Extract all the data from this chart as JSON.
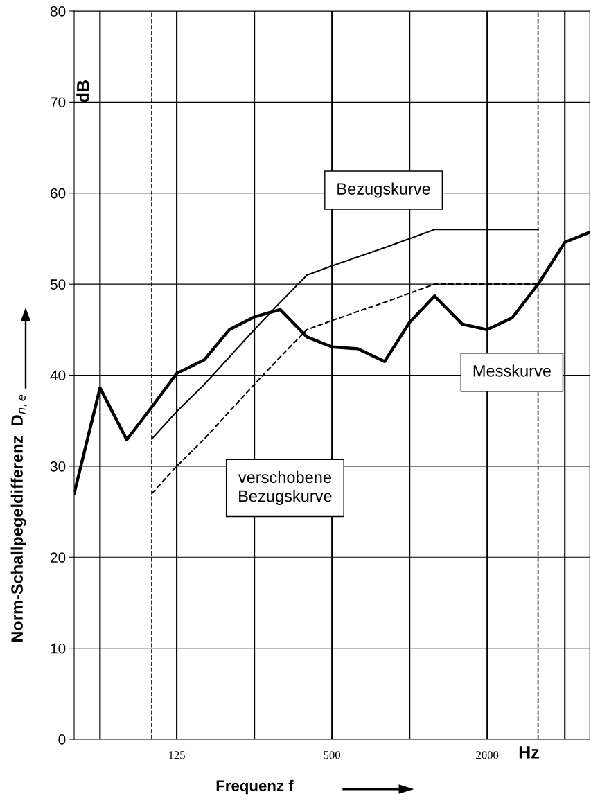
{
  "chart_data": {
    "type": "line",
    "x": [
      50,
      63,
      80,
      100,
      125,
      160,
      200,
      250,
      315,
      400,
      500,
      630,
      800,
      1000,
      1250,
      1600,
      2000,
      2500,
      3150,
      4000,
      5000
    ],
    "series": [
      {
        "name": "Messkurve",
        "color": "#000000",
        "line_style": "solid",
        "values": [
          27,
          38.6,
          32.9,
          36.5,
          40.2,
          41.7,
          45,
          46.4,
          47.2,
          44.2,
          43.1,
          42.9,
          41.5,
          45.8,
          48.7,
          45.6,
          45,
          46.3,
          50,
          54.6,
          55.7
        ]
      },
      {
        "name": "Bezugskurve",
        "color": "#000000",
        "line_style": "solid",
        "x": [
          100,
          125,
          160,
          200,
          250,
          315,
          400,
          500,
          630,
          800,
          1000,
          1250,
          1600,
          2000,
          2500,
          3150
        ],
        "values": [
          33,
          36,
          39,
          42,
          45,
          48,
          51,
          52,
          53,
          54,
          55,
          56,
          56,
          56,
          56,
          56
        ]
      },
      {
        "name": "verschobene\nBezugskurve",
        "color": "#000000",
        "line_style": "dashed",
        "x": [
          100,
          125,
          160,
          200,
          250,
          315,
          400,
          500,
          630,
          800,
          1000,
          1250,
          1600,
          2000,
          2500,
          3150
        ],
        "values": [
          27,
          30,
          33,
          36,
          39,
          42,
          45,
          46,
          47,
          48,
          49,
          50,
          50,
          50,
          50,
          50
        ]
      }
    ],
    "xlabel": "Frequenz f",
    "ylabel": "Norm-Schallpegeldifferenz  D$_{n,e}$",
    "annotations": [
      "dB",
      "Hz"
    ],
    "log": "x",
    "xlim": [
      50,
      5000
    ],
    "xticks": [
      {
        "value": 63,
        "label": null
      },
      {
        "value": 125,
        "label": "125"
      },
      {
        "value": 250,
        "label": null
      },
      {
        "value": 500,
        "label": "500"
      },
      {
        "value": 1000,
        "label": null
      },
      {
        "value": 2000,
        "label": "2000"
      },
      {
        "value": 4000,
        "label": null
      }
    ],
    "ylim": [
      0,
      80
    ],
    "yticks": [
      0,
      10,
      20,
      30,
      40,
      50,
      60,
      70,
      80
    ],
    "ref_lines": [
      {
        "axis": "x",
        "value": 100,
        "line_style": "dashed",
        "color": "#000000"
      },
      {
        "axis": "x",
        "value": 3150,
        "line_style": "dashed",
        "color": "#000000"
      }
    ],
    "grid": true,
    "legend": false,
    "marker": "none"
  }
}
